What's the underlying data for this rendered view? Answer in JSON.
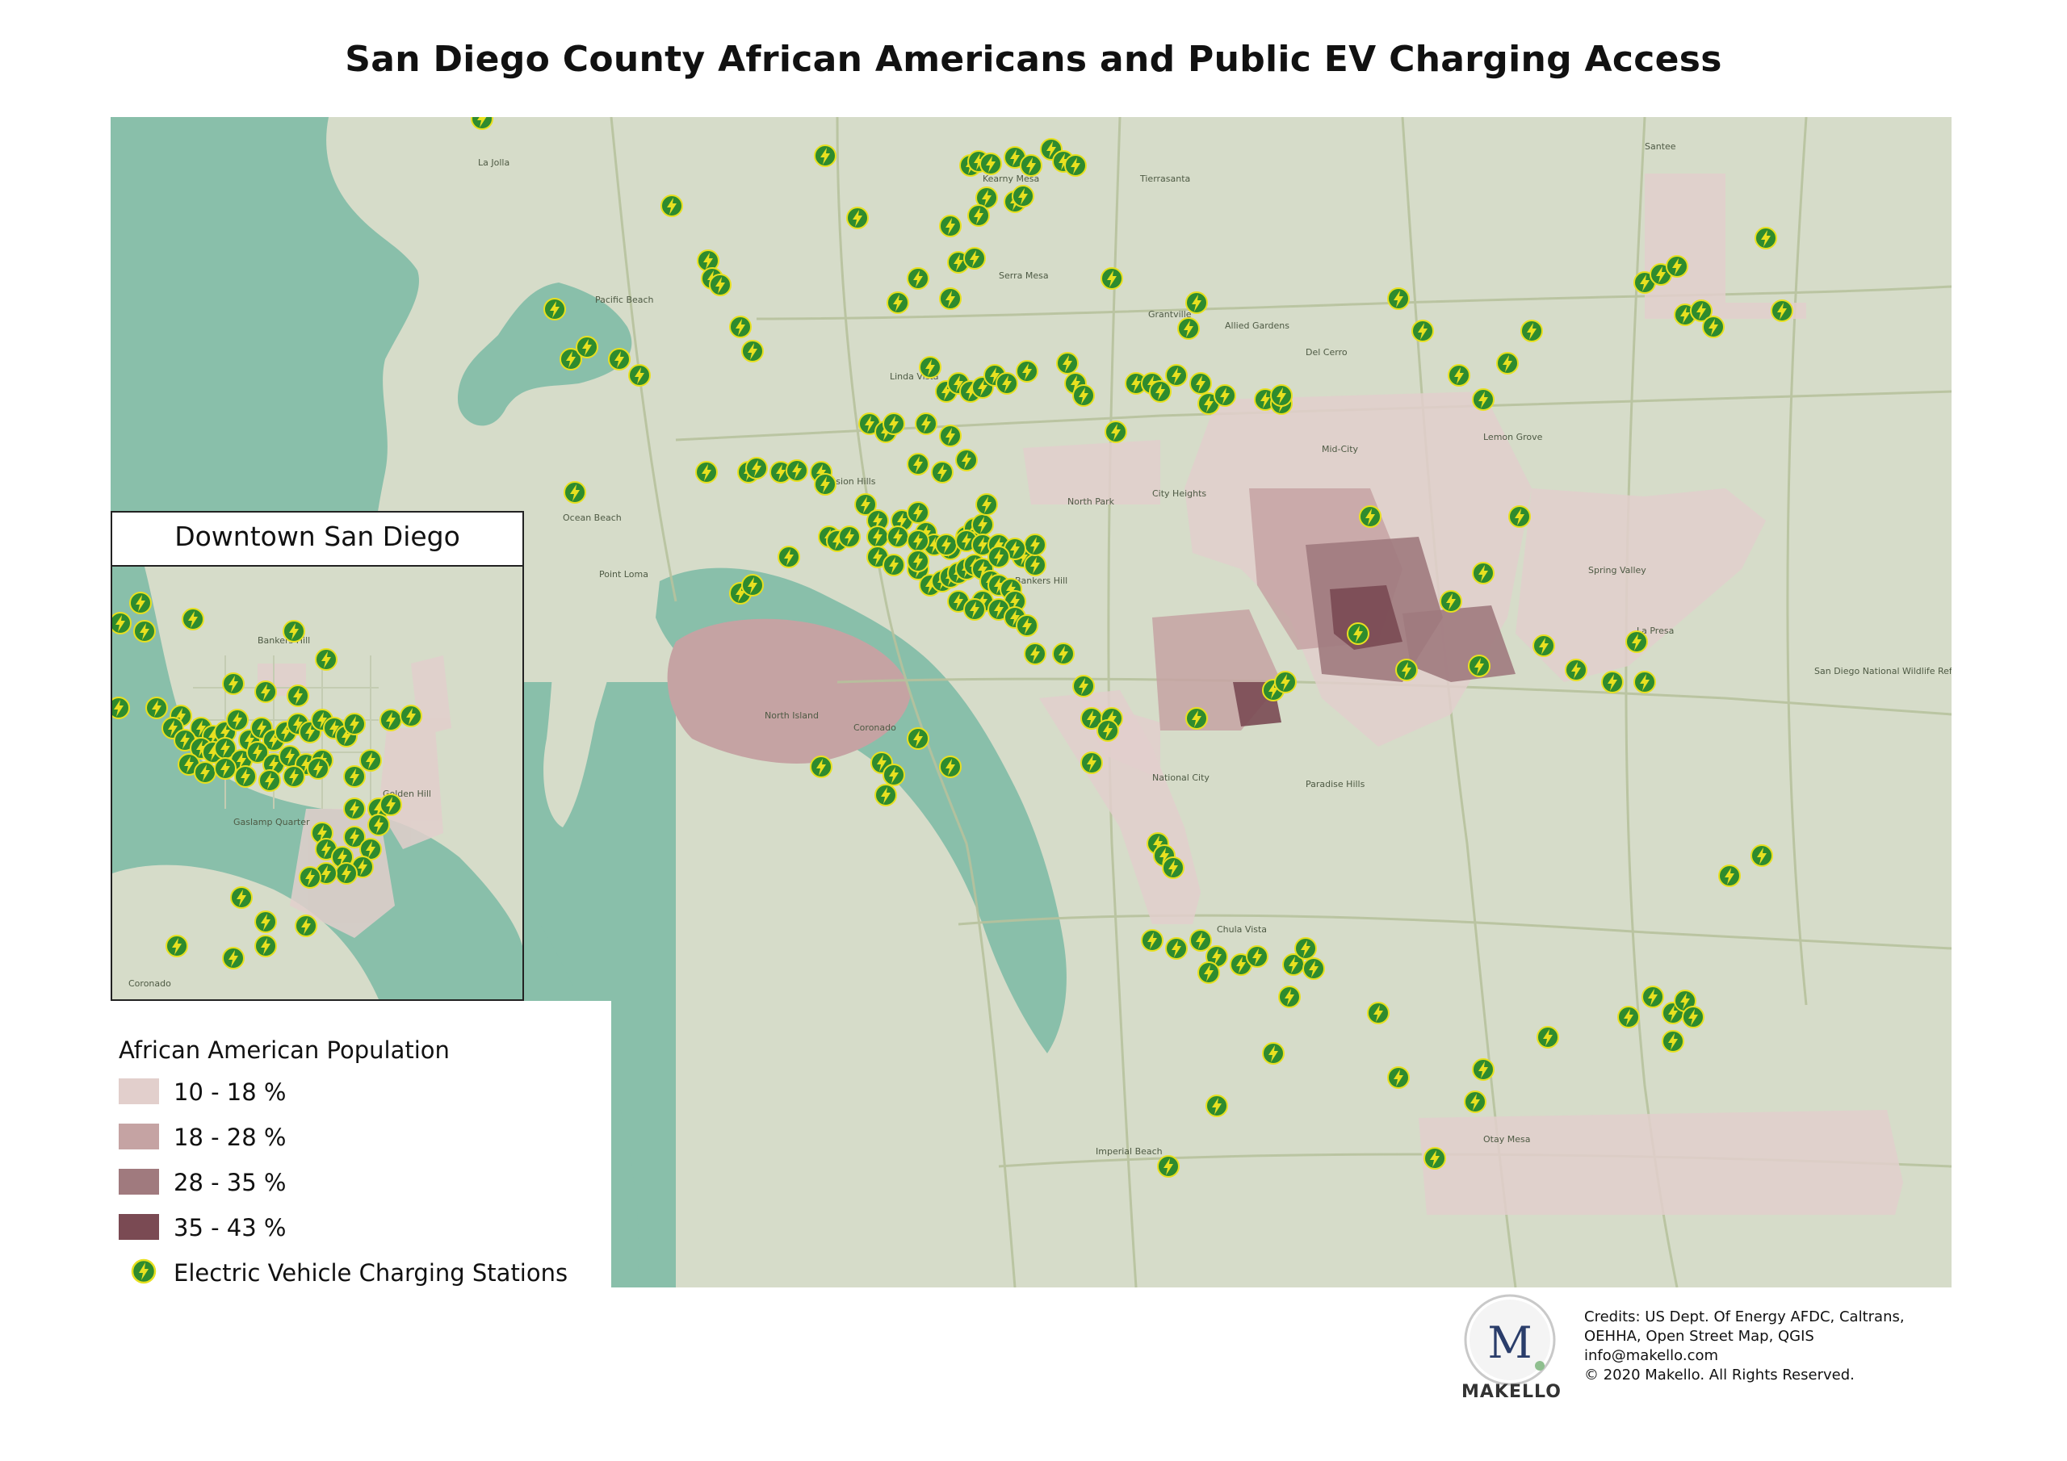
{
  "title": "San Diego County African Americans and Public EV Charging Access",
  "inset": {
    "title": "Downtown San Diego"
  },
  "legend": {
    "title": "African American Population",
    "classes": [
      {
        "label": "10 - 18 %",
        "color": "#e2cfcc"
      },
      {
        "label": "18 - 28 %",
        "color": "#c5a3a3"
      },
      {
        "label": "28 - 35 %",
        "color": "#a07a7e"
      },
      {
        "label": "35 - 43 %",
        "color": "#7a4a53"
      }
    ],
    "stations_label": "Electric Vehicle Charging Stations"
  },
  "colors": {
    "water": "#89bfaa",
    "land": "#d6dcc9",
    "roads": "#b7c29d",
    "station_fill": "#2e8b2e",
    "station_bolt": "#e8e020"
  },
  "logo": {
    "letter": "M",
    "name": "MAKELLO"
  },
  "credits": [
    "Credits: US Dept. Of Energy AFDC, Caltrans,",
    "OEHHA, Open Street Map, QGIS",
    "info@makello.com",
    "© 2020 Makello. All Rights Reserved."
  ],
  "place_labels": {
    "la_jolla": "La Jolla",
    "pacific_beach": "Pacific Beach",
    "ocean_beach": "Ocean Beach",
    "point_loma": "Point Loma",
    "mission_hills": "Mission Hills",
    "north_park": "North Park",
    "city_heights": "City Heights",
    "linda_vista": "Linda Vista",
    "kearny_mesa": "Kearny Mesa",
    "serra_mesa": "Serra Mesa",
    "tierrasanta": "Tierrasanta",
    "santee": "Santee",
    "north_island": "North Island",
    "coronado": "Coronado",
    "national_city": "National City",
    "paradise_hills": "Paradise Hills",
    "spring_valley": "Spring Valley",
    "la_presa": "La Presa",
    "chula_vista": "Chula Vista",
    "imperial_beach": "Imperial Beach",
    "bankers_hill": "Bankers Hill",
    "grantville": "Grantville",
    "del_cerro": "Del Cerro",
    "allied_gardens": "Allied Gardens",
    "mid_city": "Mid-City",
    "lemon_grove": "Lemon Grove",
    "san_diego_refuge": "San Diego National Wildlife Refuge",
    "otay_mesa": "Otay Mesa",
    "inset_coronado": "Coronado",
    "inset_bankers_hill": "Bankers Hill",
    "inset_golden_hill": "Golden Hill",
    "inset_gaslamp": "Gaslamp Quarter"
  }
}
